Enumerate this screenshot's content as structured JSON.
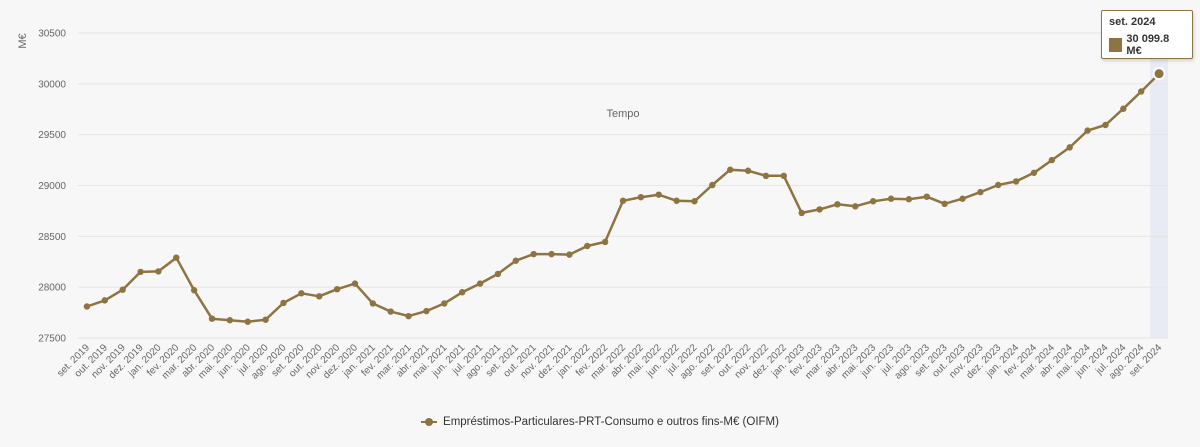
{
  "chart_data": {
    "type": "line",
    "xlabel": "Tempo",
    "ylabel": "M€",
    "ylim": [
      27500,
      30500
    ],
    "yticks": [
      27500,
      28000,
      28500,
      29000,
      29500,
      30000,
      30500
    ],
    "grid": true,
    "legend_placement": "bottom-center",
    "categories": [
      "set. 2019",
      "out. 2019",
      "nov. 2019",
      "dez. 2019",
      "jan. 2020",
      "fev. 2020",
      "mar. 2020",
      "abr. 2020",
      "mai. 2020",
      "jun. 2020",
      "jul. 2020",
      "ago. 2020",
      "set. 2020",
      "out. 2020",
      "nov. 2020",
      "dez. 2020",
      "jan. 2021",
      "fev. 2021",
      "mar. 2021",
      "abr. 2021",
      "mai. 2021",
      "jun. 2021",
      "jul. 2021",
      "ago. 2021",
      "set. 2021",
      "out. 2021",
      "nov. 2021",
      "dez. 2021",
      "jan. 2022",
      "fev. 2022",
      "mar. 2022",
      "abr. 2022",
      "mai. 2022",
      "jun. 2022",
      "jul. 2022",
      "ago. 2022",
      "set. 2022",
      "out. 2022",
      "nov. 2022",
      "dez. 2022",
      "jan. 2023",
      "fev. 2023",
      "mar. 2023",
      "abr. 2023",
      "mai. 2023",
      "jun. 2023",
      "jul. 2023",
      "ago. 2023",
      "set. 2023",
      "out. 2023",
      "nov. 2023",
      "dez. 2023",
      "jan. 2024",
      "fev. 2024",
      "mar. 2024",
      "abr. 2024",
      "mai. 2024",
      "jun. 2024",
      "jul. 2024",
      "ago. 2024",
      "set. 2024"
    ],
    "series": [
      {
        "name": "Empréstimos-Particulares-PRT-Consumo e outros fins-M€ (OIFM)",
        "color": "#8d7440",
        "values": [
          27810,
          27870,
          27975,
          28150,
          28155,
          28290,
          27970,
          27690,
          27675,
          27660,
          27680,
          27845,
          27940,
          27910,
          27980,
          28035,
          27840,
          27760,
          27715,
          27765,
          27840,
          27950,
          28035,
          28130,
          28260,
          28325,
          28325,
          28320,
          28405,
          28445,
          28850,
          28885,
          28910,
          28850,
          28845,
          29005,
          29155,
          29145,
          29095,
          29095,
          28730,
          28765,
          28815,
          28795,
          28845,
          28870,
          28865,
          28890,
          28820,
          28870,
          28935,
          29005,
          29040,
          29125,
          29250,
          29375,
          29540,
          29595,
          29755,
          29925,
          30099.8
        ]
      }
    ],
    "highlight": {
      "index": 60,
      "band_color": "#e8ebf4"
    }
  },
  "tooltip": {
    "title": "set. 2024",
    "value": "30 099.8 M€"
  }
}
